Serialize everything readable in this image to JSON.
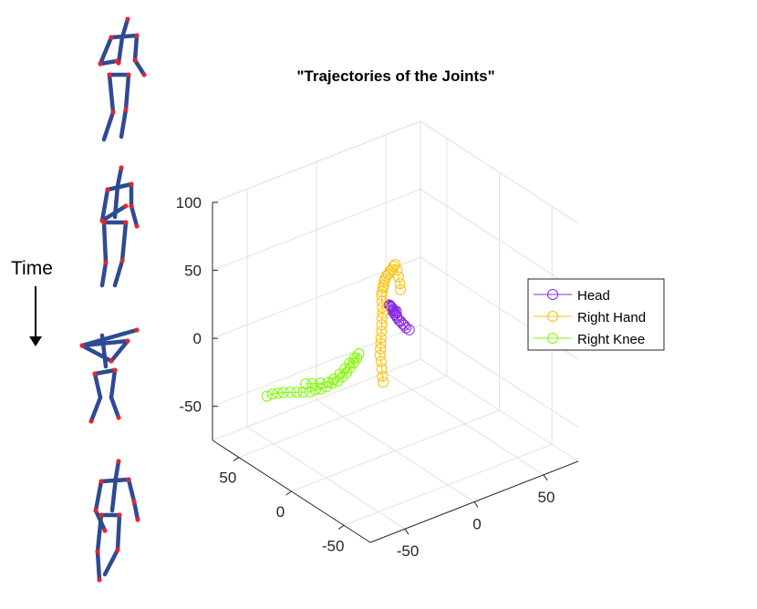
{
  "side_panel": {
    "time_label": "Time",
    "figure_colors": {
      "limb": "#2f4a94",
      "joint": "#e8252b"
    }
  },
  "chart_data": {
    "type": "scatter",
    "subtype": "3d-trajectory",
    "title": "\"Trajectories of the Joints\"",
    "xlabel": "",
    "ylabel": "",
    "zlabel": "",
    "xlim": [
      -75,
      75
    ],
    "ylim": [
      -75,
      75
    ],
    "zlim": [
      -75,
      100
    ],
    "x_ticks": [
      -50,
      0,
      50
    ],
    "y_ticks": [
      -50,
      0,
      50
    ],
    "z_ticks": [
      -50,
      0,
      50,
      100
    ],
    "grid": true,
    "marker": "open-circle",
    "legend_position": "right",
    "series": [
      {
        "name": "Head",
        "color": "#8a2be2",
        "points": [
          [
            10,
            0,
            10
          ],
          [
            10,
            3,
            10
          ],
          [
            11,
            6,
            10
          ],
          [
            12,
            9,
            9
          ],
          [
            13,
            12,
            9
          ],
          [
            14,
            15,
            8
          ],
          [
            15,
            18,
            8
          ],
          [
            17,
            21,
            7
          ],
          [
            18,
            24,
            6
          ],
          [
            20,
            27,
            5
          ],
          [
            21,
            30,
            4
          ],
          [
            23,
            33,
            3
          ],
          [
            25,
            36,
            1
          ],
          [
            27,
            39,
            0
          ],
          [
            29,
            42,
            -2
          ],
          [
            31,
            45,
            -4
          ],
          [
            33,
            48,
            -6
          ],
          [
            35,
            51,
            -8
          ],
          [
            37,
            54,
            -10
          ],
          [
            39,
            57,
            -12
          ],
          [
            41,
            60,
            -14
          ],
          [
            43,
            62,
            -16
          ],
          [
            45,
            64,
            -19
          ],
          [
            47,
            66,
            -21
          ],
          [
            49,
            67,
            -24
          ],
          [
            51,
            68,
            -26
          ],
          [
            53,
            69,
            -28
          ]
        ]
      },
      {
        "name": "Right Hand",
        "color": "#ffc000",
        "points": [
          [
            -5,
            5,
            -25
          ],
          [
            -4,
            7,
            -22
          ],
          [
            -3,
            9,
            -18
          ],
          [
            -2,
            11,
            -14
          ],
          [
            -2,
            12,
            -10
          ],
          [
            -1,
            13,
            -6
          ],
          [
            0,
            14,
            -3
          ],
          [
            1,
            15,
            0
          ],
          [
            2,
            16,
            4
          ],
          [
            3,
            17,
            8
          ],
          [
            4,
            18,
            12
          ],
          [
            6,
            20,
            14
          ],
          [
            8,
            23,
            16
          ],
          [
            10,
            26,
            18
          ],
          [
            12,
            29,
            20
          ],
          [
            14,
            31,
            21
          ],
          [
            16,
            33,
            22
          ],
          [
            18,
            35,
            22
          ],
          [
            20,
            37,
            23
          ],
          [
            22,
            39,
            23
          ],
          [
            24,
            40,
            24
          ],
          [
            26,
            41,
            24
          ],
          [
            28,
            42,
            25
          ],
          [
            30,
            43,
            25
          ],
          [
            32,
            44,
            26
          ],
          [
            34,
            45,
            26
          ],
          [
            30,
            38,
            27
          ],
          [
            25,
            30,
            28
          ],
          [
            20,
            22,
            29
          ],
          [
            15,
            15,
            30
          ]
        ]
      },
      {
        "name": "Right Knee",
        "color": "#7cfc00",
        "points": [
          [
            -70,
            30,
            -22
          ],
          [
            -66,
            30,
            -22
          ],
          [
            -62,
            30,
            -23
          ],
          [
            -58,
            30,
            -24
          ],
          [
            -54,
            29,
            -25
          ],
          [
            -50,
            28,
            -26
          ],
          [
            -46,
            27,
            -27
          ],
          [
            -42,
            26,
            -28
          ],
          [
            -38,
            26,
            -28
          ],
          [
            -34,
            26,
            -29
          ],
          [
            -30,
            26,
            -29
          ],
          [
            -26,
            26,
            -28
          ],
          [
            -22,
            26,
            -28
          ],
          [
            -18,
            27,
            -27
          ],
          [
            -14,
            28,
            -26
          ],
          [
            -10,
            30,
            -25
          ],
          [
            -6,
            32,
            -24
          ],
          [
            -2,
            34,
            -23
          ],
          [
            1,
            36,
            -22
          ],
          [
            -3,
            35,
            -23
          ],
          [
            -8,
            33,
            -24
          ],
          [
            -13,
            31,
            -25
          ],
          [
            -18,
            29,
            -26
          ],
          [
            -23,
            28,
            -27
          ],
          [
            -28,
            27,
            -27
          ],
          [
            -33,
            28,
            -26
          ],
          [
            -38,
            29,
            -25
          ],
          [
            -42,
            30,
            -24
          ]
        ]
      }
    ]
  }
}
